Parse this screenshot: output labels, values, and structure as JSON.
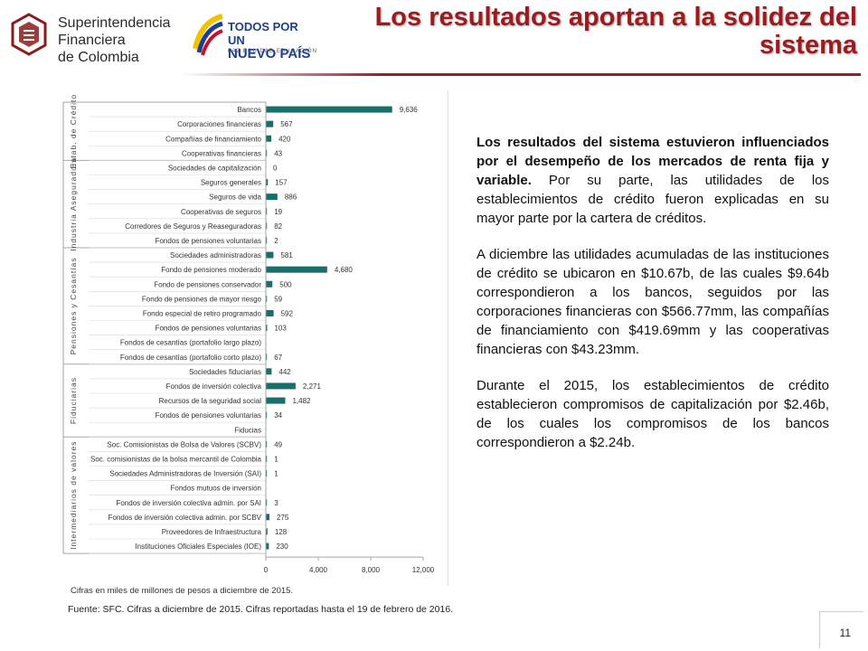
{
  "header": {
    "sfc_logo_lines": [
      "Superintendencia",
      "Financiera",
      "de Colombia"
    ],
    "gov_logo_lines": [
      "TODOS POR UN",
      "NUEVO PAÍS"
    ],
    "gov_logo_tagline": "PAZ  EQUIDAD  EDUCACIÓN",
    "title_line1": "Los resultados aportan a la solidez del",
    "title_line2": "sistema"
  },
  "colors": {
    "title": "#9b1b1e",
    "bar": "#1a6e6a",
    "axis": "#a6a6a6"
  },
  "chart_data": {
    "type": "bar",
    "orientation": "horizontal",
    "xlim": [
      0,
      12000
    ],
    "x_ticks": [
      "0",
      "4,000",
      "8,000",
      "12,000"
    ],
    "categories": [
      "Bancos",
      "Corporaciones financieras",
      "Compañías de financiamiento",
      "Cooperativas financieras",
      "Sociedades de capitalización",
      "Seguros generales",
      "Seguros de vida",
      "Cooperativas de seguros",
      "Corredores de Seguros y Reaseguradoras",
      "Fondos de pensiones voluntarias",
      "Sociedades administradoras",
      "Fondo de pensiones moderado",
      "Fondo de pensiones conservador",
      "Fondo de pensiones de mayor riesgo",
      "Fondo especial de retiro programado",
      "Fondos de pensiones voluntarias",
      "Fondos de cesantías (portafolio largo plazo)",
      "Fondos de cesantías (portafolio corto plazo)",
      "Sociedades fiduciarias",
      "Fondos de inversión colectiva",
      "Recursos de la seguridad social",
      "Fondos de pensiones voluntarias",
      "Fiducias",
      "Soc. Comisionistas de Bolsa de Valores (SCBV)",
      "Soc. comisionistas de la bolsa mercantil de Colombia",
      "Sociedades Administradoras de Inversión (SAI)",
      "Fondos mutuos de inversión",
      "Fondos de inversión colectiva admin. por SAI",
      "Fondos de inversión colectiva admin. por SCBV",
      "Proveedores de Infraestructura",
      "Instituciones Oficiales Especiales (IOE)"
    ],
    "values": [
      9636,
      567,
      420,
      43,
      0,
      157,
      886,
      19,
      82,
      2,
      581,
      4680,
      500,
      59,
      592,
      103,
      null,
      67,
      442,
      2271,
      1482,
      34,
      null,
      49,
      1,
      1,
      null,
      3,
      275,
      128,
      230
    ],
    "value_labels": [
      "9,636",
      "567",
      "420",
      "43",
      "0",
      "157",
      "886",
      "19",
      "82",
      "2",
      "581",
      "4,680",
      "500",
      "59",
      "592",
      "103",
      "",
      "67",
      "442",
      "2,271",
      "1,482",
      "34",
      "",
      "49",
      "1",
      "1",
      "",
      "3",
      "275",
      "128",
      "230"
    ],
    "groups": [
      {
        "label": "Estab. de Crédito",
        "start": 0,
        "end": 3
      },
      {
        "label": "Industria Aseguradora",
        "start": 4,
        "end": 9
      },
      {
        "label": "Pensiones y Cesantías",
        "start": 10,
        "end": 17
      },
      {
        "label": "Fiduciarias",
        "start": 18,
        "end": 22
      },
      {
        "label": "Intermediarios de valores",
        "start": 23,
        "end": 30
      }
    ]
  },
  "notes": {
    "cifras": "Cifras en miles de millones de pesos a diciembre de 2015.",
    "fuente": "Fuente: SFC. Cifras a diciembre de 2015. Cifras reportadas hasta el 19 de febrero de 2016."
  },
  "body": {
    "p1_bold": "Los resultados del sistema estuvieron influenciados por el desempeño de los mercados de renta fija y variable.",
    "p1_rest": " Por su parte, las utilidades de los establecimientos de crédito fueron explicadas en su mayor parte por la cartera de créditos.",
    "p2": "A diciembre las utilidades acumuladas de las instituciones de crédito se ubicaron en $10.67b, de las cuales $9.64b correspondieron a los bancos, seguidos por las corporaciones financieras con $566.77mm, las compañías de financiamiento con $419.69mm y las cooperativas financieras con $43.23mm.",
    "p3": "Durante el 2015, los establecimientos de crédito establecieron compromisos de capitalización por $2.46b, de los cuales los compromisos de los bancos correspondieron a $2.24b."
  },
  "footer": {
    "page_number": "11"
  }
}
